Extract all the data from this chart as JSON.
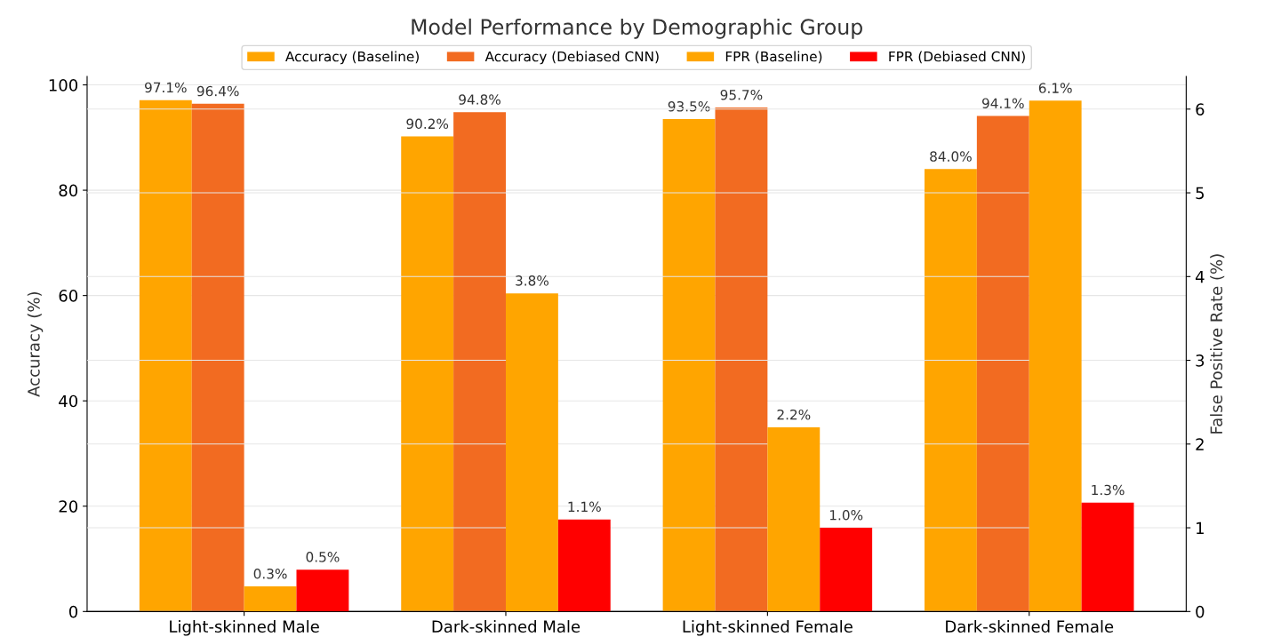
{
  "chart_data": {
    "type": "bar",
    "title": "Model Performance by Demographic Group",
    "categories": [
      "Light-skinned Male",
      "Dark-skinned Male",
      "Light-skinned Female",
      "Dark-skinned Female"
    ],
    "series": [
      {
        "name": "Accuracy (Baseline)",
        "color": "#ffa500",
        "values": [
          97.1,
          90.2,
          93.5,
          84.0
        ],
        "value_labels": [
          "97.1%",
          "90.2%",
          "93.5%",
          "84.0%"
        ]
      },
      {
        "name": "Accuracy (Debiased CNN)",
        "color": "#f26b21",
        "values": [
          96.4,
          94.8,
          95.7,
          94.1
        ],
        "value_labels": [
          "96.4%",
          "94.8%",
          "95.7%",
          "94.1%"
        ]
      },
      {
        "name": "FPR (Baseline)",
        "color": "#ffa500",
        "axis": "y2",
        "values": [
          0.3,
          3.8,
          2.2,
          6.1
        ],
        "value_labels": [
          "0.3%",
          "3.8%",
          "2.2%",
          "6.1%"
        ]
      },
      {
        "name": "FPR (Debiased CNN)",
        "color": "#ff0000",
        "axis": "y2",
        "values": [
          0.5,
          1.1,
          1.0,
          1.3
        ],
        "value_labels": [
          "0.5%",
          "1.1%",
          "1.0%",
          "1.3%"
        ]
      }
    ],
    "ylabel": "Accuracy (%)",
    "y2label": "False Positive Rate (%)",
    "ylim": [
      0,
      101.6
    ],
    "yticks": [
      0,
      20,
      40,
      60,
      80,
      100
    ],
    "y2lim": [
      0,
      6.39
    ],
    "y2ticks": [
      0,
      1,
      2,
      3,
      4,
      5,
      6
    ],
    "grid": true,
    "legend": "top"
  }
}
